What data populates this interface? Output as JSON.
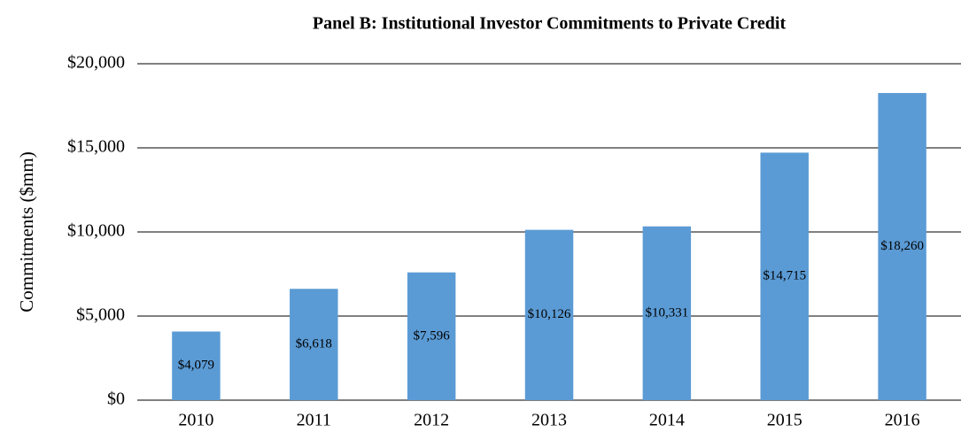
{
  "chart_data": {
    "type": "bar",
    "title": "Panel B: Institutional Investor Commitments to Private Credit",
    "y_label": "Commitments ($mm)",
    "categories": [
      "2010",
      "2011",
      "2012",
      "2013",
      "2014",
      "2015",
      "2016"
    ],
    "values": [
      4079,
      6618,
      7596,
      10126,
      10331,
      14715,
      18260
    ],
    "value_labels": [
      "$4,079",
      "$6,618",
      "$7,596",
      "$10,126",
      "$10,331",
      "$14,715",
      "$18,260"
    ],
    "color": "#5b9bd5",
    "ylim": [
      0,
      20000
    ],
    "yticks": [
      {
        "value": 0,
        "label": "$0"
      },
      {
        "value": 5000,
        "label": "$5,000"
      },
      {
        "value": 10000,
        "label": "$10,000"
      },
      {
        "value": 15000,
        "label": "$15,000"
      },
      {
        "value": 20000,
        "label": "$20,000"
      }
    ],
    "grid": true
  }
}
